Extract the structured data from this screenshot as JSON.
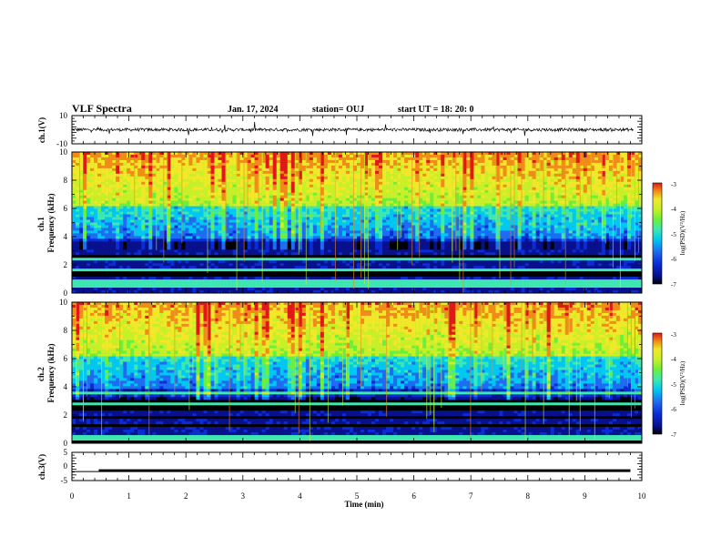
{
  "header": {
    "title": "VLF Spectra",
    "date": "Jan. 17, 2024",
    "station": "station= OUJ",
    "start": "start  UT  =   18: 20: 0"
  },
  "chart_data": [
    {
      "type": "line",
      "panel": "ch1-waveform",
      "ylabel": "ch.1(V)",
      "ylim": [
        -10,
        10
      ],
      "y_ticks": [
        "10",
        "-10"
      ],
      "xlim": [
        0,
        10
      ],
      "baseline": 0,
      "color": "#000000"
    },
    {
      "type": "heatmap",
      "panel": "ch1-spectrogram",
      "ylabel": "ch.1\nFrequency  (kHz)",
      "ylim": [
        0,
        10
      ],
      "y_ticks": [
        "0",
        "2",
        "4",
        "6",
        "8",
        "10"
      ],
      "xlim": [
        0,
        10
      ],
      "colorbar": {
        "label": "log(PSD)(V²/Hz)",
        "range": [
          -7,
          -3
        ],
        "ticks": [
          "-3",
          "-4",
          "-5",
          "-6",
          "-7"
        ]
      }
    },
    {
      "type": "heatmap",
      "panel": "ch2-spectrogram",
      "ylabel": "ch.2\nFrequency  (kHz)",
      "ylim": [
        0,
        10
      ],
      "y_ticks": [
        "0",
        "2",
        "4",
        "6",
        "8",
        "10"
      ],
      "xlim": [
        0,
        10
      ],
      "colorbar": {
        "label": "log(PSD)(V²/Hz)",
        "range": [
          -7,
          -3
        ],
        "ticks": [
          "-3",
          "-4",
          "-5",
          "-6",
          "-7"
        ]
      }
    },
    {
      "type": "line",
      "panel": "ch3-waveform",
      "ylabel": "ch.3(V)",
      "ylim": [
        -5,
        5
      ],
      "y_ticks": [
        "5",
        "0",
        "-5"
      ],
      "xlim": [
        0,
        10
      ],
      "segments": [
        {
          "x": [
            0,
            0.47
          ],
          "y": [
            -1.8,
            -1.8
          ]
        },
        {
          "x": [
            0.47,
            9.8
          ],
          "y": [
            -1.5,
            -1.5
          ]
        }
      ],
      "color": "#000000"
    }
  ],
  "x_axis": {
    "label": "Time  (min)",
    "ticks": [
      "0",
      "1",
      "2",
      "3",
      "4",
      "5",
      "6",
      "7",
      "8",
      "9",
      "10"
    ]
  },
  "colormap": [
    "#000000",
    "#08108c",
    "#0a2cd6",
    "#1e6cf0",
    "#00c8f0",
    "#3ee8b0",
    "#6cf03a",
    "#c8f028",
    "#f0e828",
    "#f08c18",
    "#e01818"
  ]
}
